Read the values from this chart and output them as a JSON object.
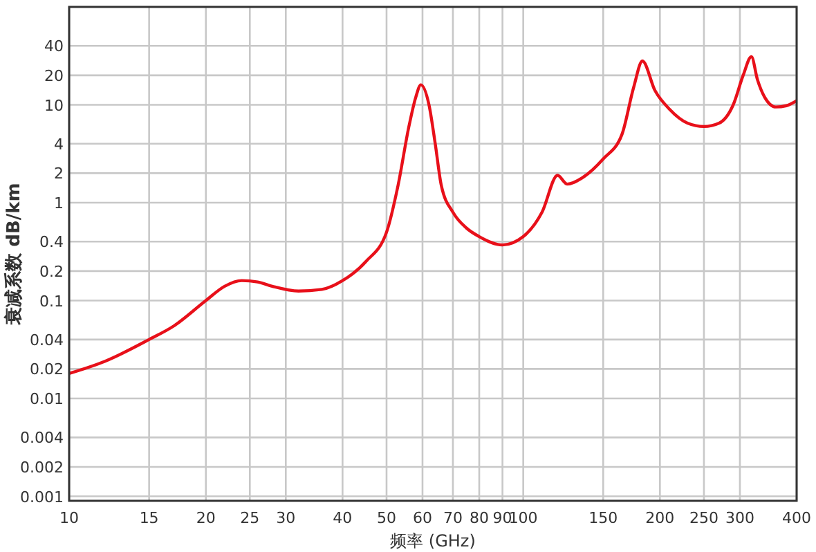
{
  "chart_data": {
    "type": "line",
    "xlabel": "频率 (GHz)",
    "ylabel": "衰减系数 dB/km",
    "log": "xy",
    "grid": true,
    "xlim": [
      10,
      400
    ],
    "ylim": [
      0.0009,
      100
    ],
    "xticks": [
      10,
      15,
      20,
      25,
      30,
      40,
      50,
      60,
      70,
      80,
      90,
      100,
      150,
      200,
      250,
      300,
      400
    ],
    "yticks": [
      0.001,
      0.002,
      0.004,
      0.01,
      0.02,
      0.04,
      0.1,
      0.2,
      0.4,
      1,
      2,
      4,
      10,
      20,
      40
    ],
    "series": [
      {
        "color": "#e8101a",
        "x": [
          10,
          12,
          15,
          17,
          20,
          22,
          24,
          26,
          28,
          32,
          36,
          40,
          45,
          50,
          53,
          56,
          58,
          59.5,
          62,
          64,
          66,
          70,
          75,
          80,
          90,
          100,
          110,
          119,
          125,
          135,
          150,
          165,
          175,
          183,
          195,
          210,
          230,
          250,
          270,
          290,
          305,
          318,
          328,
          340,
          360,
          380,
          400
        ],
        "values": [
          0.018,
          0.024,
          0.04,
          0.055,
          0.1,
          0.14,
          0.16,
          0.155,
          0.14,
          0.125,
          0.13,
          0.16,
          0.25,
          0.5,
          1.5,
          6,
          12,
          16,
          10,
          4,
          1.5,
          0.8,
          0.55,
          0.45,
          0.37,
          0.45,
          0.8,
          1.9,
          1.55,
          1.8,
          2.8,
          5,
          15,
          28,
          14,
          9,
          6.5,
          6,
          6.5,
          10,
          20,
          31,
          18,
          12,
          9.5,
          9.8,
          11
        ]
      }
    ]
  }
}
